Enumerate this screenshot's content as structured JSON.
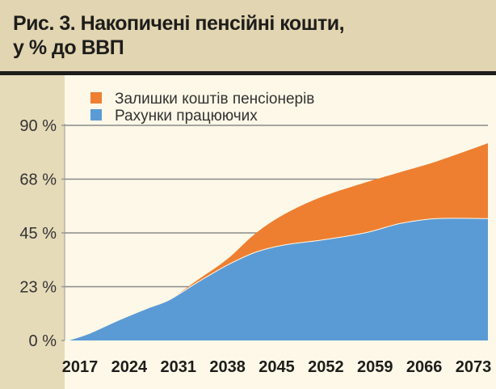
{
  "chart_data": {
    "type": "area",
    "stacked": true,
    "title": "Рис. 3. Накопичені пенсійні кошти, у % до ВВП",
    "title_lines": [
      "Рис. 3. Накопичені пенсійні кошти,",
      "у % до ВВП"
    ],
    "xlabel": "",
    "ylabel": "",
    "x_tick_labels": [
      "2017",
      "2024",
      "2031",
      "2038",
      "2045",
      "2052",
      "2059",
      "2066",
      "2073"
    ],
    "y_tick_labels": [
      "0 %",
      "23 %",
      "45 %",
      "68 %",
      "90 %"
    ],
    "y_tick_values": [
      0,
      22.5,
      45,
      67.5,
      90
    ],
    "ylim": [
      0,
      90
    ],
    "xlim": [
      2017,
      2075
    ],
    "grid": true,
    "legend_position": "top-left",
    "x": [
      2017,
      2020,
      2024,
      2028,
      2031,
      2035,
      2039,
      2043,
      2047,
      2052,
      2058,
      2063,
      2068,
      2075
    ],
    "series": [
      {
        "name": "Рахунки працюючих",
        "color": "#5b9bd5",
        "values": [
          0,
          3,
          8.5,
          13.5,
          17,
          24.5,
          31.5,
          37,
          40,
          42,
          45,
          49,
          51,
          51
        ]
      },
      {
        "name": "Залишки коштів пенсіонерів",
        "color": "#ee7f31",
        "values": [
          0,
          0,
          0,
          0,
          0,
          1,
          2.5,
          8,
          13,
          18,
          21,
          21.5,
          24,
          31.5
        ]
      }
    ]
  }
}
